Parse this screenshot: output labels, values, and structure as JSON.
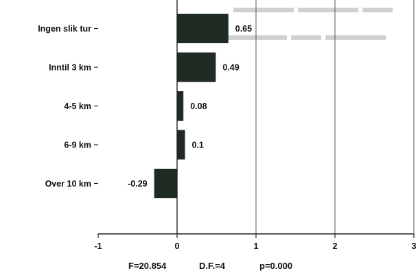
{
  "chart_data": {
    "type": "bar",
    "orientation": "horizontal",
    "categories": [
      "Ingen slik tur",
      "Inntil 3 km",
      "4-5 km",
      "6-9 km",
      "Over 10 km"
    ],
    "values": [
      0.65,
      0.49,
      0.08,
      0.1,
      -0.29
    ],
    "value_labels": [
      "0.65",
      "0.49",
      "0.08",
      "0.1",
      "-0.29"
    ],
    "xlim": [
      -1,
      3
    ],
    "xticks": [
      -1,
      0,
      1,
      2,
      3
    ],
    "xtick_labels": [
      "-1",
      "0",
      "1",
      "2",
      "3"
    ],
    "vertical_gridlines_at": [
      1,
      2,
      3
    ],
    "bar_color": "#1f2a22",
    "footer": {
      "f_stat": "F=20.854",
      "df": "D.F.=4",
      "p": "p=0.000"
    }
  }
}
